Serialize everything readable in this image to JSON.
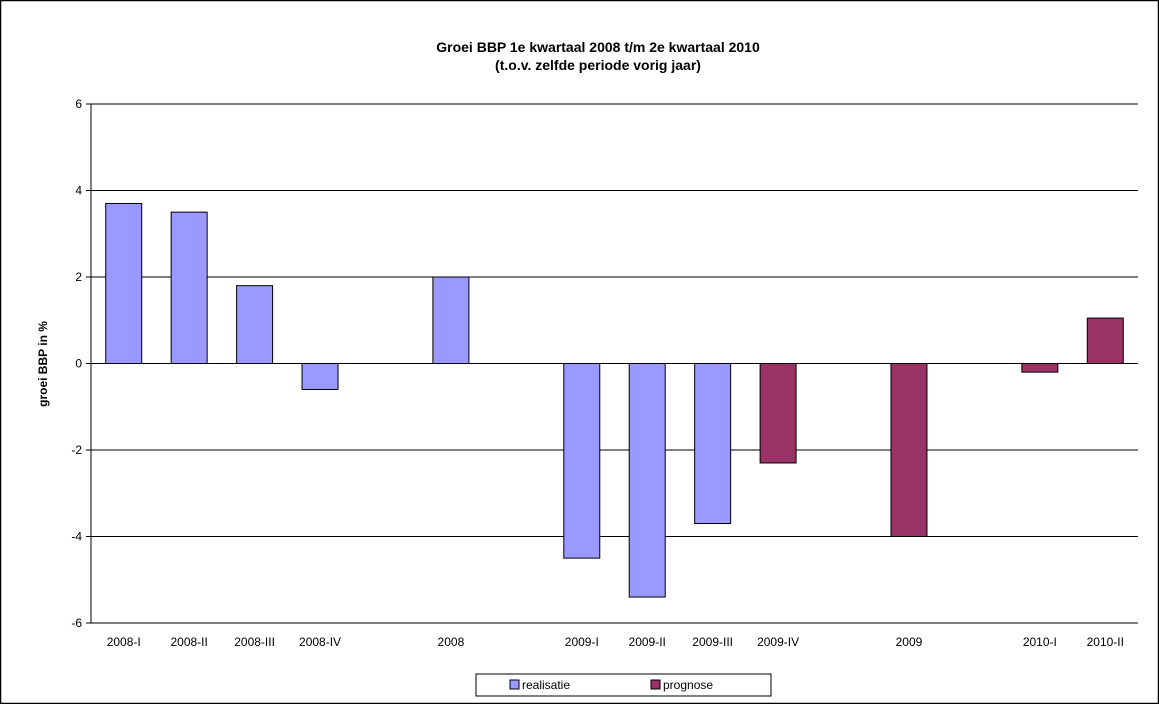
{
  "chart_data": {
    "type": "bar",
    "title": "Groei BBP 1e kwartaal 2008 t/m 2e kwartaal 2010",
    "subtitle": "(t.o.v. zelfde periode vorig jaar)",
    "ylabel": "groei BBP in %",
    "xlabel": "",
    "ylim": [
      -6,
      6
    ],
    "yticks": [
      -6,
      -4,
      -2,
      0,
      2,
      4,
      6
    ],
    "grid": true,
    "legend_position": "bottom-center",
    "categories": [
      "2008-I",
      "2008-II",
      "2008-III",
      "2008-IV",
      "",
      "2008",
      "",
      "2009-I",
      "2009-II",
      "2009-III",
      "2009-IV",
      "",
      "2009",
      "",
      "2010-I",
      "2010-II"
    ],
    "series": [
      {
        "name": "realisatie",
        "color": "#9999ff",
        "values": [
          3.7,
          3.5,
          1.8,
          -0.6,
          null,
          2.0,
          null,
          -4.5,
          -5.4,
          -3.7,
          null,
          null,
          null,
          null,
          null,
          null
        ]
      },
      {
        "name": "prognose",
        "color": "#993366",
        "values": [
          null,
          null,
          null,
          null,
          null,
          null,
          null,
          null,
          null,
          null,
          -2.3,
          null,
          -4.0,
          null,
          -0.2,
          1.05
        ]
      }
    ]
  }
}
